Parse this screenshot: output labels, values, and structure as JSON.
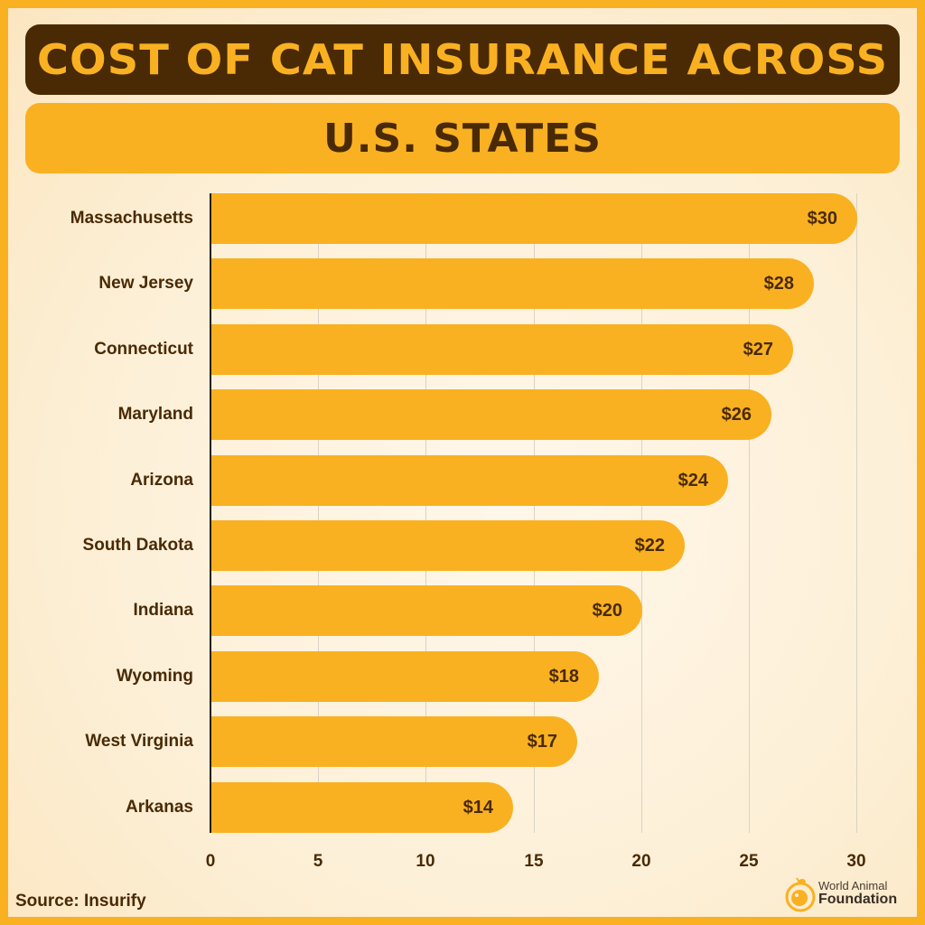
{
  "header": {
    "title": "COST OF CAT INSURANCE ACROSS",
    "subtitle": "U.S. STATES"
  },
  "colors": {
    "bar": "#f9b122",
    "title_bg": "#4a2a05",
    "text": "#4a2a05",
    "background": "#fdf0d8",
    "border": "#f9b122"
  },
  "chart_data": {
    "type": "bar",
    "orientation": "horizontal",
    "title": "Cost of Cat Insurance Across U.S. States",
    "xlabel": "",
    "ylabel": "",
    "xlim": [
      0,
      30
    ],
    "x_ticks": [
      0,
      5,
      10,
      15,
      20,
      25,
      30
    ],
    "grid": "vertical",
    "legend": null,
    "categories": [
      "Massachusetts",
      "New Jersey",
      "Connecticut",
      "Maryland",
      "Arizona",
      "South Dakota",
      "Indiana",
      "Wyoming",
      "West Virginia",
      "Arkanas"
    ],
    "values": [
      30,
      28,
      27,
      26,
      24,
      22,
      20,
      18,
      17,
      14
    ],
    "value_labels": [
      "$30",
      "$28",
      "$27",
      "$26",
      "$24",
      "$22",
      "$20",
      "$18",
      "$17",
      "$14"
    ]
  },
  "bars": [
    {
      "label": "Massachusetts",
      "value": 30,
      "value_label": "$30"
    },
    {
      "label": "New Jersey",
      "value": 28,
      "value_label": "$28"
    },
    {
      "label": "Connecticut",
      "value": 27,
      "value_label": "$27"
    },
    {
      "label": "Maryland",
      "value": 26,
      "value_label": "$26"
    },
    {
      "label": "Arizona",
      "value": 24,
      "value_label": "$24"
    },
    {
      "label": "South Dakota",
      "value": 22,
      "value_label": "$22"
    },
    {
      "label": "Indiana",
      "value": 20,
      "value_label": "$20"
    },
    {
      "label": "Wyoming",
      "value": 18,
      "value_label": "$18"
    },
    {
      "label": "West Virginia",
      "value": 17,
      "value_label": "$17"
    },
    {
      "label": "Arkanas",
      "value": 14,
      "value_label": "$14"
    }
  ],
  "axis": {
    "ticks": [
      "0",
      "5",
      "10",
      "15",
      "20",
      "25",
      "30"
    ]
  },
  "footer": {
    "source": "Source: Insurify",
    "logo_line1": "World Animal",
    "logo_line2": "Foundation",
    "logo_icon": "pet-logo-icon"
  }
}
